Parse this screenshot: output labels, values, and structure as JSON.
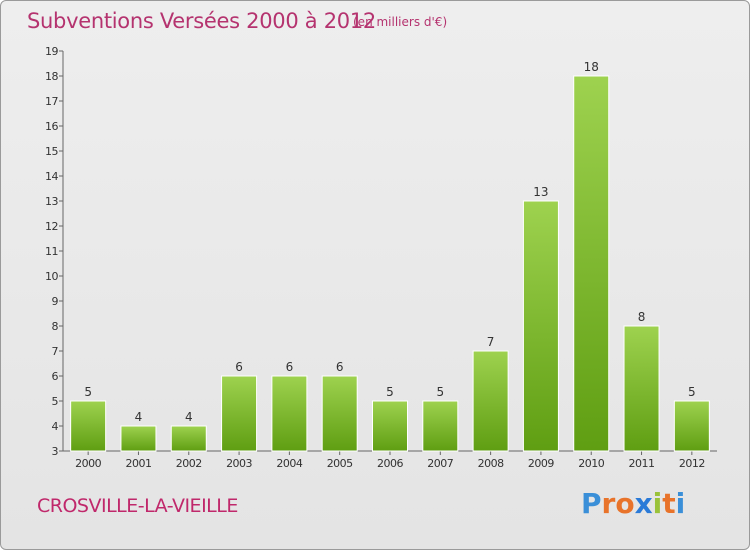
{
  "header": {
    "title": "Subventions Versées 2000 à 2012",
    "subtitle": "(en milliers d'€)"
  },
  "footer": {
    "commune": "CROSVILLE-LA-VIEILLE",
    "logo_text": "Proxiti"
  },
  "colors": {
    "title": "#b5336f",
    "bar_light": "#9ed24f",
    "bar_dark": "#5f9e12",
    "logo_letters": [
      "#3a8fd8",
      "#e8732a",
      "#e8732a",
      "#2a7ad8",
      "#9ac23a",
      "#e8732a",
      "#3a8fd8"
    ]
  },
  "chart_data": {
    "type": "bar",
    "categories": [
      "2000",
      "2001",
      "2002",
      "2003",
      "2004",
      "2005",
      "2006",
      "2007",
      "2008",
      "2009",
      "2010",
      "2011",
      "2012"
    ],
    "values": [
      5,
      4,
      4,
      6,
      6,
      6,
      5,
      5,
      7,
      13,
      18,
      8,
      5
    ],
    "ylim": [
      3,
      19
    ],
    "yticks": [
      3,
      4,
      5,
      6,
      7,
      8,
      9,
      10,
      11,
      12,
      13,
      14,
      15,
      16,
      17,
      18,
      19
    ],
    "grid": false,
    "legend": "none"
  }
}
